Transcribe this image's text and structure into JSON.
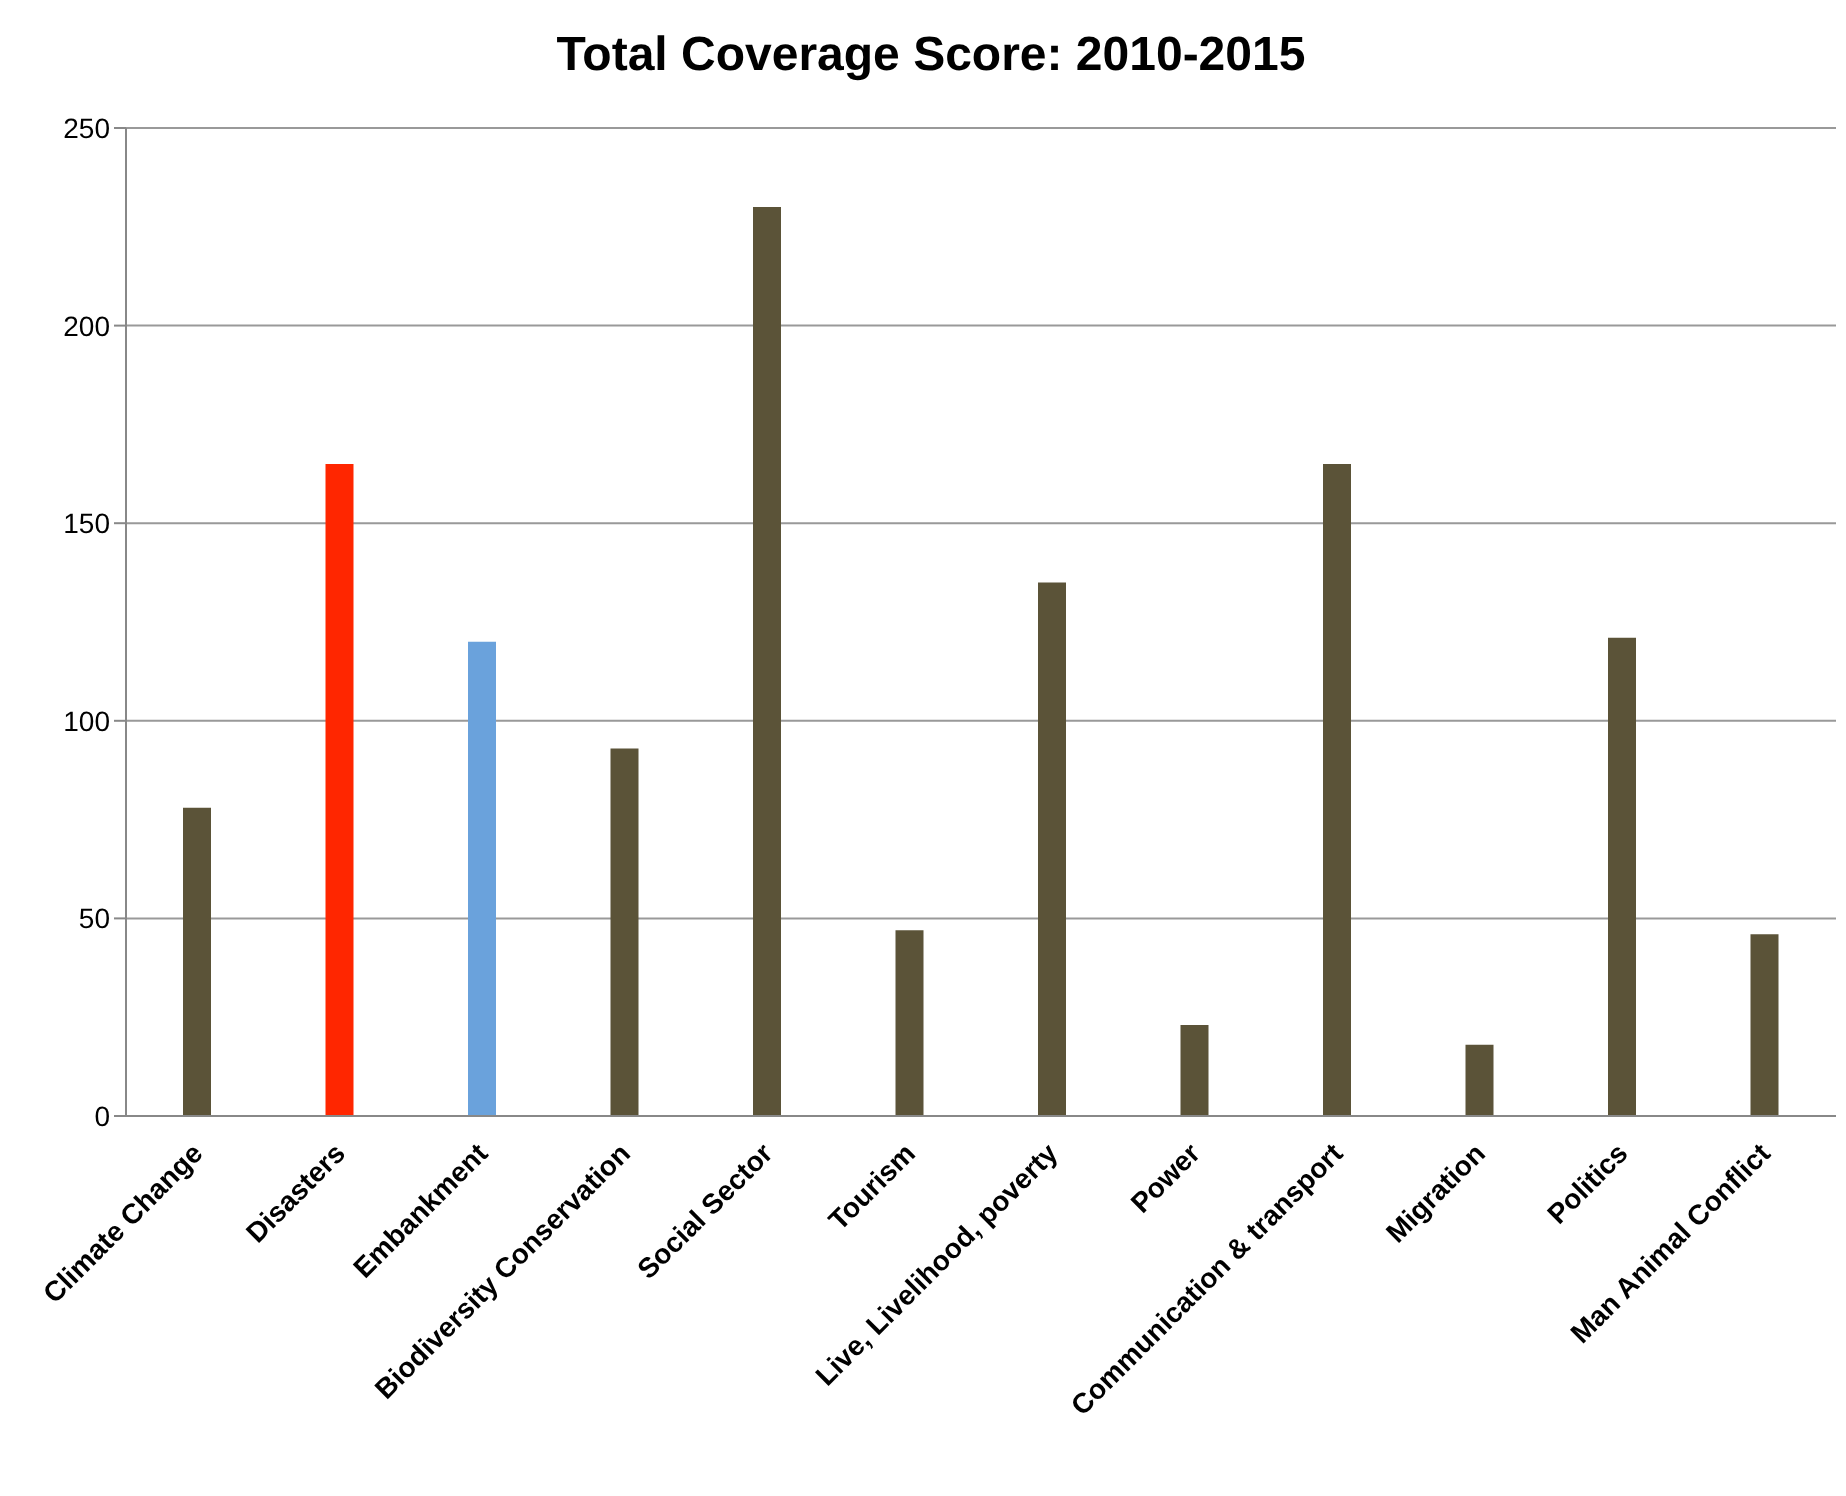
{
  "chart_data": {
    "type": "bar",
    "title": "Total Coverage Score: 2010-2015",
    "categories": [
      "Climate Change",
      "Disasters",
      "Embankment",
      "Biodiversity Conservation",
      "Social Sector",
      "Tourism",
      "Live, Livelihood, poverty",
      "Power",
      "Communication & transport",
      "Migration",
      "Politics",
      "Man Animal Conflict"
    ],
    "values": [
      78,
      165,
      120,
      93,
      230,
      47,
      135,
      23,
      165,
      18,
      121,
      46
    ],
    "colors": [
      "#5b5338",
      "#ff2600",
      "#6aa2dc",
      "#5b5338",
      "#5b5338",
      "#5b5338",
      "#5b5338",
      "#5b5338",
      "#5b5338",
      "#5b5338",
      "#5b5338",
      "#5b5338"
    ],
    "ylim": [
      0,
      250
    ],
    "yticks": [
      0,
      50,
      100,
      150,
      200,
      250
    ],
    "grid": "y"
  }
}
